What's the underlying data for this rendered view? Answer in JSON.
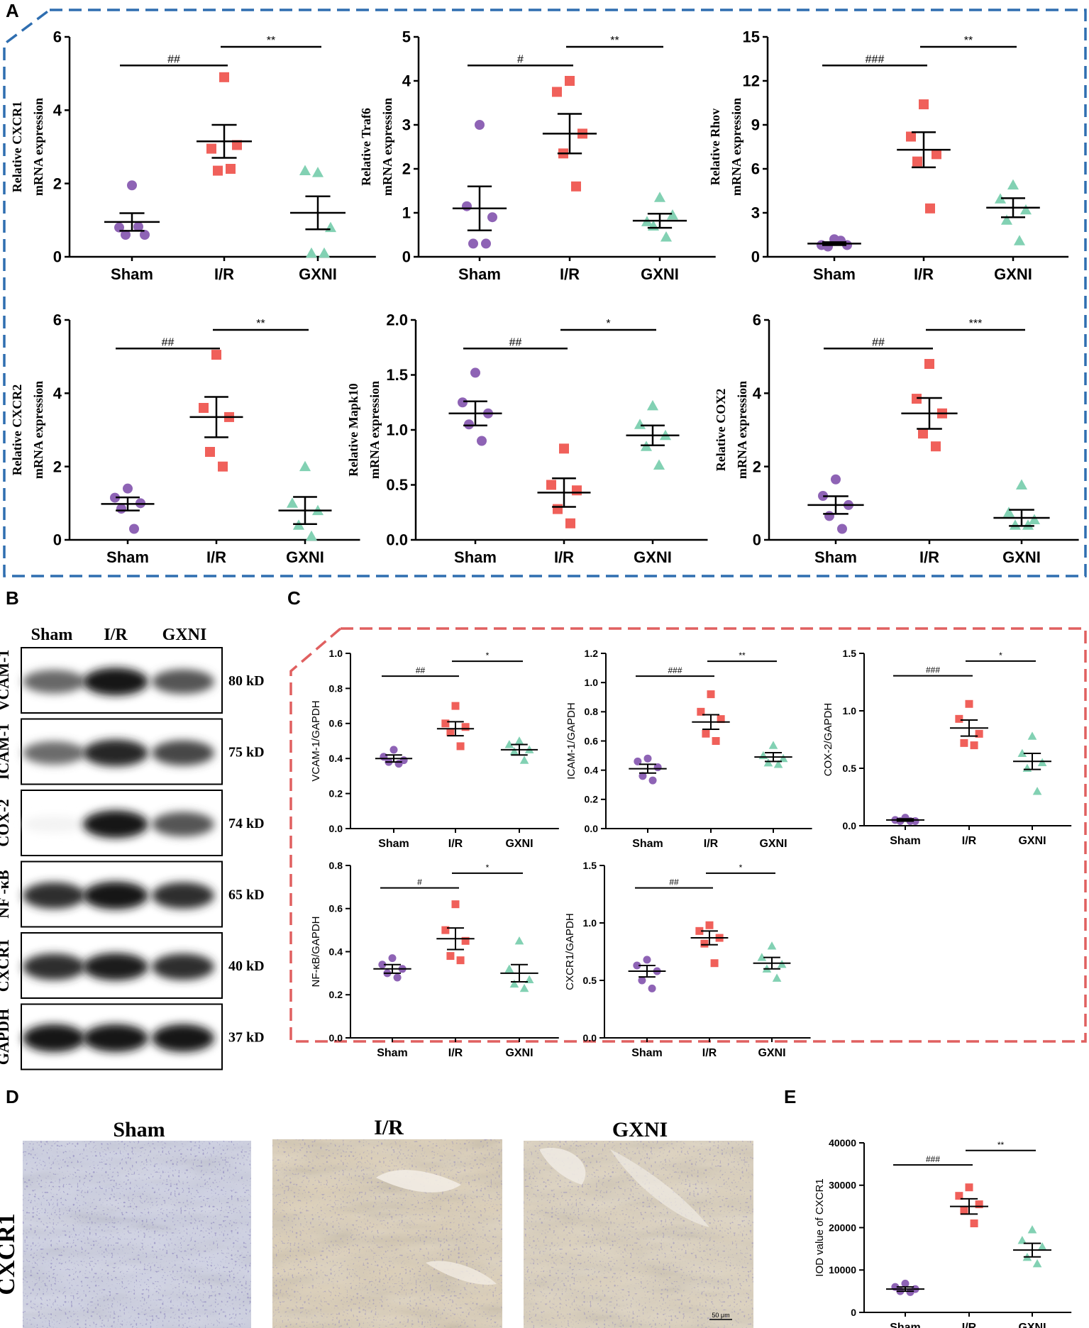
{
  "panel_labels": [
    "A",
    "B",
    "C",
    "D",
    "E"
  ],
  "colors": {
    "sham": "#8e63b5",
    "ir": "#f0605a",
    "gxni": "#82d1b3",
    "frame_a": "#2f6eb0",
    "frame_c": "#e06060"
  },
  "chart_data": [
    {
      "id": "A1",
      "type": "scatter",
      "title": "",
      "ylabel": [
        "Relative CXCR1",
        "mRNA expression"
      ],
      "categories": [
        "Sham",
        "I/R",
        "GXNI"
      ],
      "ylim": [
        0,
        6
      ],
      "yticks": [
        "0",
        "2",
        "4",
        "6"
      ],
      "series": [
        {
          "name": "Sham",
          "points": [
            1.95,
            0.8,
            0.6,
            0.6,
            0.82
          ],
          "mean": 0.95,
          "sem": 0.24
        },
        {
          "name": "I/R",
          "points": [
            4.9,
            2.95,
            3.05,
            2.35,
            2.4
          ],
          "mean": 3.15,
          "sem": 0.45
        },
        {
          "name": "GXNI",
          "points": [
            2.3,
            2.35,
            0.8,
            0.1,
            0.1
          ],
          "mean": 1.2,
          "sem": 0.45
        }
      ],
      "sig": [
        {
          "from": 0,
          "to": 1,
          "label": "##"
        },
        {
          "from": 1,
          "to": 2,
          "label": "**"
        }
      ]
    },
    {
      "id": "A2",
      "type": "scatter",
      "title": "",
      "ylabel": [
        "Relative Traf6",
        "mRNA expression"
      ],
      "categories": [
        "Sham",
        "I/R",
        "GXNI"
      ],
      "ylim": [
        0,
        5
      ],
      "yticks": [
        "0",
        "1",
        "2",
        "3",
        "4",
        "5"
      ],
      "series": [
        {
          "name": "Sham",
          "points": [
            3.0,
            1.15,
            0.9,
            0.3,
            0.3
          ],
          "mean": 1.1,
          "sem": 0.5
        },
        {
          "name": "I/R",
          "points": [
            4.0,
            3.75,
            2.8,
            2.35,
            1.6
          ],
          "mean": 2.8,
          "sem": 0.45
        },
        {
          "name": "GXNI",
          "points": [
            1.35,
            0.8,
            0.95,
            0.7,
            0.45
          ],
          "mean": 0.82,
          "sem": 0.16
        }
      ],
      "sig": [
        {
          "from": 0,
          "to": 1,
          "label": "#"
        },
        {
          "from": 1,
          "to": 2,
          "label": "**"
        }
      ]
    },
    {
      "id": "A3",
      "type": "scatter",
      "title": "",
      "ylabel": [
        "Relative Rhov",
        "mRNA expression"
      ],
      "categories": [
        "Sham",
        "I/R",
        "GXNI"
      ],
      "ylim": [
        0,
        15
      ],
      "yticks": [
        "0",
        "3",
        "6",
        "9",
        "12",
        "15"
      ],
      "series": [
        {
          "name": "Sham",
          "points": [
            1.2,
            0.8,
            0.8,
            0.7,
            1.1
          ],
          "mean": 0.9,
          "sem": 0.1
        },
        {
          "name": "I/R",
          "points": [
            10.4,
            8.2,
            7.0,
            6.5,
            3.3
          ],
          "mean": 7.3,
          "sem": 1.2
        },
        {
          "name": "GXNI",
          "points": [
            4.9,
            3.95,
            3.2,
            2.5,
            1.1
          ],
          "mean": 3.35,
          "sem": 0.65
        }
      ],
      "sig": [
        {
          "from": 0,
          "to": 1,
          "label": "###"
        },
        {
          "from": 1,
          "to": 2,
          "label": "**"
        }
      ]
    },
    {
      "id": "A4",
      "type": "scatter",
      "title": "",
      "ylabel": [
        "Relative CXCR2",
        "mRNA expression"
      ],
      "categories": [
        "Sham",
        "I/R",
        "GXNI"
      ],
      "ylim": [
        0,
        6
      ],
      "yticks": [
        "0",
        "2",
        "4",
        "6"
      ],
      "series": [
        {
          "name": "Sham",
          "points": [
            1.4,
            1.15,
            1.0,
            0.85,
            0.3
          ],
          "mean": 0.98,
          "sem": 0.18
        },
        {
          "name": "I/R",
          "points": [
            5.05,
            3.6,
            3.35,
            2.4,
            2.0
          ],
          "mean": 3.35,
          "sem": 0.55
        },
        {
          "name": "GXNI",
          "points": [
            2.0,
            1.0,
            0.8,
            0.4,
            0.1
          ],
          "mean": 0.8,
          "sem": 0.37
        }
      ],
      "sig": [
        {
          "from": 0,
          "to": 1,
          "label": "##"
        },
        {
          "from": 1,
          "to": 2,
          "label": "**"
        }
      ]
    },
    {
      "id": "A5",
      "type": "scatter",
      "title": "",
      "ylabel": [
        "Relative Mapk10",
        "mRNA expression"
      ],
      "categories": [
        "Sham",
        "I/R",
        "GXNI"
      ],
      "ylim": [
        0,
        2
      ],
      "yticks": [
        "0.0",
        "0.5",
        "1.0",
        "1.5",
        "2.0"
      ],
      "series": [
        {
          "name": "Sham",
          "points": [
            1.52,
            1.25,
            1.15,
            1.05,
            0.9
          ],
          "mean": 1.15,
          "sem": 0.11
        },
        {
          "name": "I/R",
          "points": [
            0.83,
            0.5,
            0.45,
            0.28,
            0.15
          ],
          "mean": 0.43,
          "sem": 0.13
        },
        {
          "name": "GXNI",
          "points": [
            1.22,
            1.05,
            0.95,
            0.85,
            0.68
          ],
          "mean": 0.95,
          "sem": 0.09
        }
      ],
      "sig": [
        {
          "from": 0,
          "to": 1,
          "label": "##"
        },
        {
          "from": 1,
          "to": 2,
          "label": "*"
        }
      ]
    },
    {
      "id": "A6",
      "type": "scatter",
      "title": "",
      "ylabel": [
        "Relative COX2",
        "mRNA expression"
      ],
      "categories": [
        "Sham",
        "I/R",
        "GXNI"
      ],
      "ylim": [
        0,
        6
      ],
      "yticks": [
        "0",
        "2",
        "4",
        "6"
      ],
      "series": [
        {
          "name": "Sham",
          "points": [
            1.65,
            1.2,
            0.95,
            0.65,
            0.3
          ],
          "mean": 0.95,
          "sem": 0.24
        },
        {
          "name": "I/R",
          "points": [
            4.8,
            3.85,
            3.45,
            2.9,
            2.55
          ],
          "mean": 3.45,
          "sem": 0.42
        },
        {
          "name": "GXNI",
          "points": [
            1.5,
            0.75,
            0.55,
            0.4,
            0.4
          ],
          "mean": 0.6,
          "sem": 0.22
        }
      ],
      "sig": [
        {
          "from": 0,
          "to": 1,
          "label": "##"
        },
        {
          "from": 1,
          "to": 2,
          "label": "***"
        }
      ]
    },
    {
      "id": "C1",
      "type": "scatter",
      "title": "",
      "ylabel": [
        "VCAM-1/GAPDH"
      ],
      "categories": [
        "Sham",
        "I/R",
        "GXNI"
      ],
      "ylim": [
        0,
        1
      ],
      "yticks": [
        "0.0",
        "0.2",
        "0.4",
        "0.6",
        "0.8",
        "1.0"
      ],
      "series": [
        {
          "name": "Sham",
          "points": [
            0.45,
            0.41,
            0.39,
            0.38,
            0.37
          ],
          "mean": 0.4,
          "sem": 0.02
        },
        {
          "name": "I/R",
          "points": [
            0.7,
            0.6,
            0.58,
            0.55,
            0.47
          ],
          "mean": 0.57,
          "sem": 0.04
        },
        {
          "name": "GXNI",
          "points": [
            0.5,
            0.48,
            0.45,
            0.44,
            0.39
          ],
          "mean": 0.45,
          "sem": 0.03
        }
      ],
      "sig": [
        {
          "from": 0,
          "to": 1,
          "label": "##"
        },
        {
          "from": 1,
          "to": 2,
          "label": "*"
        }
      ]
    },
    {
      "id": "C2",
      "type": "scatter",
      "title": "",
      "ylabel": [
        "ICAM-1/GAPDH"
      ],
      "categories": [
        "Sham",
        "I/R",
        "GXNI"
      ],
      "ylim": [
        0,
        1.2
      ],
      "yticks": [
        "0.0",
        "0.2",
        "0.4",
        "0.6",
        "0.8",
        "1.0",
        "1.2"
      ],
      "series": [
        {
          "name": "Sham",
          "points": [
            0.48,
            0.46,
            0.42,
            0.36,
            0.33
          ],
          "mean": 0.41,
          "sem": 0.03
        },
        {
          "name": "I/R",
          "points": [
            0.92,
            0.8,
            0.75,
            0.65,
            0.6
          ],
          "mean": 0.73,
          "sem": 0.05
        },
        {
          "name": "GXNI",
          "points": [
            0.57,
            0.5,
            0.48,
            0.45,
            0.44
          ],
          "mean": 0.49,
          "sem": 0.03
        }
      ],
      "sig": [
        {
          "from": 0,
          "to": 1,
          "label": "###"
        },
        {
          "from": 1,
          "to": 2,
          "label": "**"
        }
      ]
    },
    {
      "id": "C3",
      "type": "scatter",
      "title": "",
      "ylabel": [
        "COX-2/GAPDH"
      ],
      "categories": [
        "Sham",
        "I/R",
        "GXNI"
      ],
      "ylim": [
        0,
        1.5
      ],
      "yticks": [
        "0.0",
        "0.5",
        "1.0",
        "1.5"
      ],
      "series": [
        {
          "name": "Sham",
          "points": [
            0.07,
            0.05,
            0.04,
            0.04,
            0.04
          ],
          "mean": 0.05,
          "sem": 0.01
        },
        {
          "name": "I/R",
          "points": [
            1.06,
            0.93,
            0.8,
            0.72,
            0.7
          ],
          "mean": 0.85,
          "sem": 0.07
        },
        {
          "name": "GXNI",
          "points": [
            0.78,
            0.63,
            0.55,
            0.5,
            0.3
          ],
          "mean": 0.56,
          "sem": 0.07
        }
      ],
      "sig": [
        {
          "from": 0,
          "to": 1,
          "label": "###"
        },
        {
          "from": 1,
          "to": 2,
          "label": "*"
        }
      ]
    },
    {
      "id": "C4",
      "type": "scatter",
      "title": "",
      "ylabel": [
        "NF-κB/GAPDH"
      ],
      "categories": [
        "Sham",
        "I/R",
        "GXNI"
      ],
      "ylim": [
        0,
        0.8
      ],
      "yticks": [
        "0.0",
        "0.2",
        "0.4",
        "0.6",
        "0.8"
      ],
      "series": [
        {
          "name": "Sham",
          "points": [
            0.37,
            0.34,
            0.32,
            0.3,
            0.28
          ],
          "mean": 0.32,
          "sem": 0.02
        },
        {
          "name": "I/R",
          "points": [
            0.62,
            0.5,
            0.45,
            0.38,
            0.36
          ],
          "mean": 0.46,
          "sem": 0.05
        },
        {
          "name": "GXNI",
          "points": [
            0.45,
            0.32,
            0.27,
            0.25,
            0.23
          ],
          "mean": 0.3,
          "sem": 0.04
        }
      ],
      "sig": [
        {
          "from": 0,
          "to": 1,
          "label": "#"
        },
        {
          "from": 1,
          "to": 2,
          "label": "*"
        }
      ]
    },
    {
      "id": "C5",
      "type": "scatter",
      "title": "",
      "ylabel": [
        "CXCR1/GAPDH"
      ],
      "categories": [
        "Sham",
        "I/R",
        "GXNI"
      ],
      "ylim": [
        0,
        1.5
      ],
      "yticks": [
        "0.0",
        "0.5",
        "1.0",
        "1.5"
      ],
      "series": [
        {
          "name": "Sham",
          "points": [
            0.68,
            0.63,
            0.58,
            0.5,
            0.43
          ],
          "mean": 0.58,
          "sem": 0.05
        },
        {
          "name": "I/R",
          "points": [
            0.98,
            0.93,
            0.87,
            0.82,
            0.65
          ],
          "mean": 0.87,
          "sem": 0.06
        },
        {
          "name": "GXNI",
          "points": [
            0.8,
            0.7,
            0.64,
            0.6,
            0.52
          ],
          "mean": 0.65,
          "sem": 0.05
        }
      ],
      "sig": [
        {
          "from": 0,
          "to": 1,
          "label": "##"
        },
        {
          "from": 1,
          "to": 2,
          "label": "*"
        }
      ]
    },
    {
      "id": "E",
      "type": "scatter",
      "title": "",
      "ylabel": [
        "IOD value of CXCR1"
      ],
      "categories": [
        "Sham",
        "I/R",
        "GXNI"
      ],
      "ylim": [
        0,
        40000
      ],
      "yticks": [
        "0",
        "10000",
        "20000",
        "30000",
        "40000"
      ],
      "series": [
        {
          "name": "Sham",
          "points": [
            6800,
            6000,
            5500,
            5000,
            4800
          ],
          "mean": 5500,
          "sem": 500
        },
        {
          "name": "I/R",
          "points": [
            29500,
            27500,
            25500,
            24000,
            21000
          ],
          "mean": 25000,
          "sem": 1800
        },
        {
          "name": "GXNI",
          "points": [
            19500,
            17000,
            15500,
            13000,
            11500
          ],
          "mean": 14700,
          "sem": 1600
        }
      ],
      "sig": [
        {
          "from": 0,
          "to": 1,
          "label": "###"
        },
        {
          "from": 1,
          "to": 2,
          "label": "**"
        }
      ]
    }
  ],
  "western_blot": {
    "lanes": [
      "Sham",
      "I/R",
      "GXNI"
    ],
    "rows": [
      {
        "protein": "VCAM-1",
        "size": "80 kD",
        "intensity": [
          0.62,
          0.95,
          0.7
        ]
      },
      {
        "protein": "ICAM-1",
        "size": "75 kD",
        "intensity": [
          0.6,
          0.88,
          0.75
        ]
      },
      {
        "protein": "COX-2",
        "size": "74 kD",
        "intensity": [
          0.05,
          0.95,
          0.7
        ]
      },
      {
        "protein": "NF -κB",
        "size": "65 kD",
        "intensity": [
          0.85,
          0.95,
          0.85
        ]
      },
      {
        "protein": "CXCR1",
        "size": "40 kD",
        "intensity": [
          0.85,
          0.92,
          0.85
        ]
      },
      {
        "protein": "GAPDH",
        "size": "37 kD",
        "intensity": [
          0.95,
          0.95,
          0.95
        ]
      }
    ]
  },
  "histology": {
    "row_label": "CXCR1",
    "titles": [
      "Sham",
      "I/R",
      "GXNI"
    ],
    "scale_bar": "50 μm"
  }
}
